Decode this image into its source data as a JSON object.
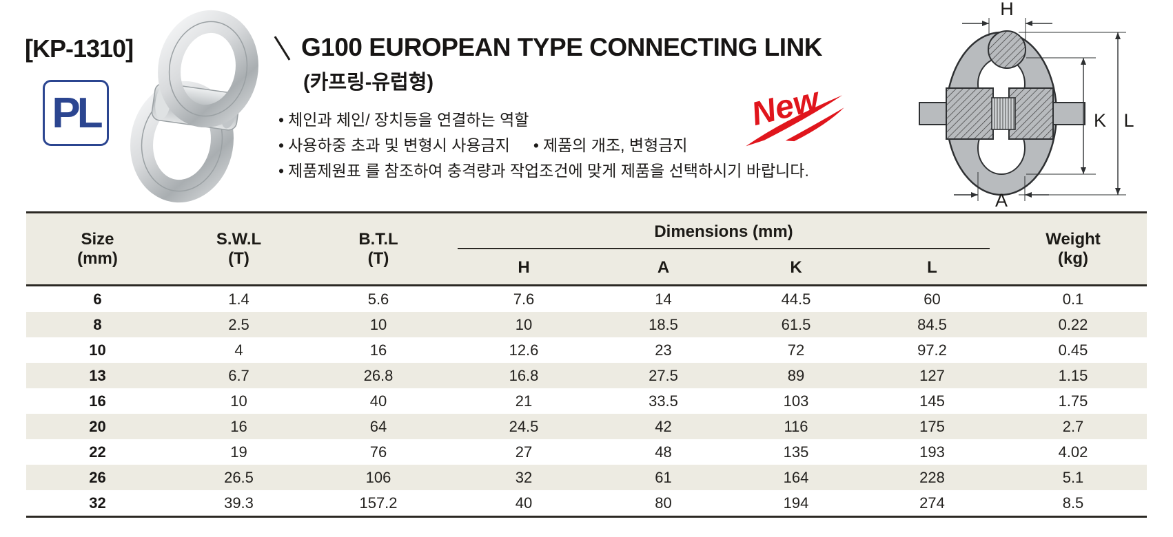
{
  "product": {
    "code": "[KP-1310]",
    "logo": "PL",
    "title": "G100 EUROPEAN TYPE CONNECTING LINK",
    "subtitle": "(카프링-유럽형)",
    "bullet_char": "•",
    "bullets": [
      "체인과  체인/ 장치등을 연결하는 역할",
      "사용하중 초과 및 변형시 사용금지",
      "제품의 개조, 변형금지",
      "제품제원표 를 참조하여 충격량과 작업조건에 맞게 제품을 선택하시기 바랍니다."
    ],
    "badge": "New"
  },
  "diagram": {
    "h": "H",
    "a": "A",
    "k": "K",
    "l": "L"
  },
  "table": {
    "headers": {
      "size": "Size",
      "size_unit": "(mm)",
      "swl": "S.W.L",
      "swl_unit": "(T)",
      "btl": "B.T.L",
      "btl_unit": "(T)",
      "dimensions": "Dimensions (mm)",
      "dim_cols": [
        "H",
        "A",
        "K",
        "L"
      ],
      "weight": "Weight",
      "weight_unit": "(kg)"
    },
    "rows": [
      {
        "size": "6",
        "swl": "1.4",
        "btl": "5.6",
        "h": "7.6",
        "a": "14",
        "k": "44.5",
        "l": "60",
        "weight": "0.1"
      },
      {
        "size": "8",
        "swl": "2.5",
        "btl": "10",
        "h": "10",
        "a": "18.5",
        "k": "61.5",
        "l": "84.5",
        "weight": "0.22"
      },
      {
        "size": "10",
        "swl": "4",
        "btl": "16",
        "h": "12.6",
        "a": "23",
        "k": "72",
        "l": "97.2",
        "weight": "0.45"
      },
      {
        "size": "13",
        "swl": "6.7",
        "btl": "26.8",
        "h": "16.8",
        "a": "27.5",
        "k": "89",
        "l": "127",
        "weight": "1.15"
      },
      {
        "size": "16",
        "swl": "10",
        "btl": "40",
        "h": "21",
        "a": "33.5",
        "k": "103",
        "l": "145",
        "weight": "1.75"
      },
      {
        "size": "20",
        "swl": "16",
        "btl": "64",
        "h": "24.5",
        "a": "42",
        "k": "116",
        "l": "175",
        "weight": "2.7"
      },
      {
        "size": "22",
        "swl": "19",
        "btl": "76",
        "h": "27",
        "a": "48",
        "k": "135",
        "l": "193",
        "weight": "4.02"
      },
      {
        "size": "26",
        "swl": "26.5",
        "btl": "106",
        "h": "32",
        "a": "61",
        "k": "164",
        "l": "228",
        "weight": "5.1"
      },
      {
        "size": "32",
        "swl": "39.3",
        "btl": "157.2",
        "h": "40",
        "a": "80",
        "k": "194",
        "l": "274",
        "weight": "8.5"
      }
    ]
  },
  "colors": {
    "accent_red": "#e0151c",
    "logo_blue": "#2b4590",
    "row_alt_beige": "#edebe2",
    "line_dark": "#2b2823",
    "diagram_gray": "#b8bbbe"
  }
}
